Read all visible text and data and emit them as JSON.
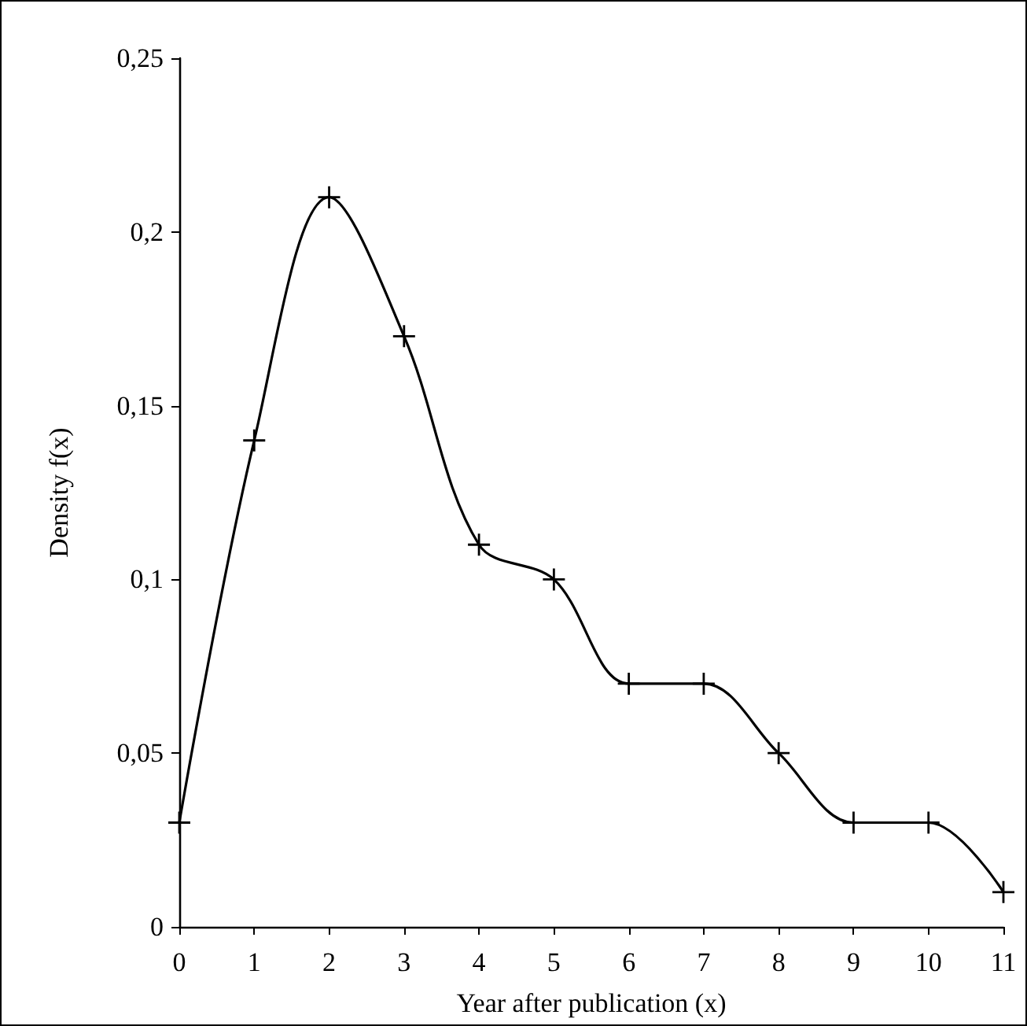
{
  "chart_data": {
    "type": "line",
    "xlabel": "Year after publication (x)",
    "ylabel": "Density f(x)",
    "x": [
      0,
      1,
      2,
      3,
      4,
      5,
      6,
      7,
      8,
      9,
      10,
      11
    ],
    "series": [
      {
        "color": "#000000",
        "values": [
          0.03,
          0.14,
          0.21,
          0.17,
          0.11,
          0.1,
          0.07,
          0.07,
          0.05,
          0.03,
          0.03,
          0.01
        ]
      }
    ],
    "xlim": [
      0,
      11
    ],
    "xticks": [
      0,
      1,
      2,
      3,
      4,
      5,
      6,
      7,
      8,
      9,
      10,
      11
    ],
    "ylim": [
      0,
      0.25
    ],
    "yticks": [
      {
        "value": 0,
        "label": "0"
      },
      {
        "value": 0.05,
        "label": "0,05"
      },
      {
        "value": 0.1,
        "label": "0,1"
      },
      {
        "value": 0.15,
        "label": "0,15"
      },
      {
        "value": 0.2,
        "label": "0,2"
      },
      {
        "value": 0.25,
        "label": "0,25"
      }
    ],
    "marker": "cross",
    "line_style": "solid"
  }
}
